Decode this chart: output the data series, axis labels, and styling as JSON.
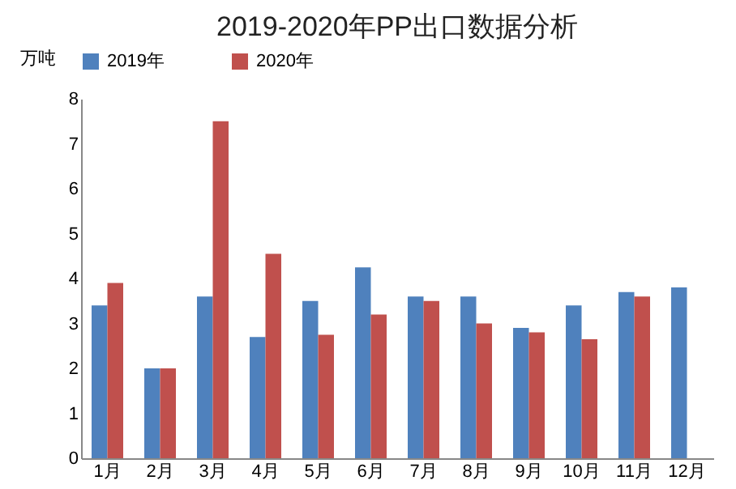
{
  "chart_data": {
    "type": "bar",
    "title": "2019-2020年PP出口数据分析",
    "ylabel": "万吨",
    "categories": [
      "1月",
      "2月",
      "3月",
      "4月",
      "5月",
      "6月",
      "7月",
      "8月",
      "9月",
      "10月",
      "11月",
      "12月"
    ],
    "series": [
      {
        "name": "2019年",
        "color": "#4f81bd",
        "values": [
          3.4,
          2.0,
          3.6,
          2.7,
          3.5,
          4.25,
          3.6,
          3.6,
          2.9,
          3.4,
          3.7,
          3.8
        ]
      },
      {
        "name": "2020年",
        "color": "#c0504d",
        "values": [
          3.9,
          2.0,
          7.5,
          4.55,
          2.75,
          3.2,
          3.5,
          3.0,
          2.8,
          2.65,
          3.6,
          null
        ]
      }
    ],
    "ylim": [
      0,
      8
    ],
    "yticks": [
      0,
      1,
      2,
      3,
      4,
      5,
      6,
      7,
      8
    ],
    "grid": false,
    "legend": "top"
  }
}
